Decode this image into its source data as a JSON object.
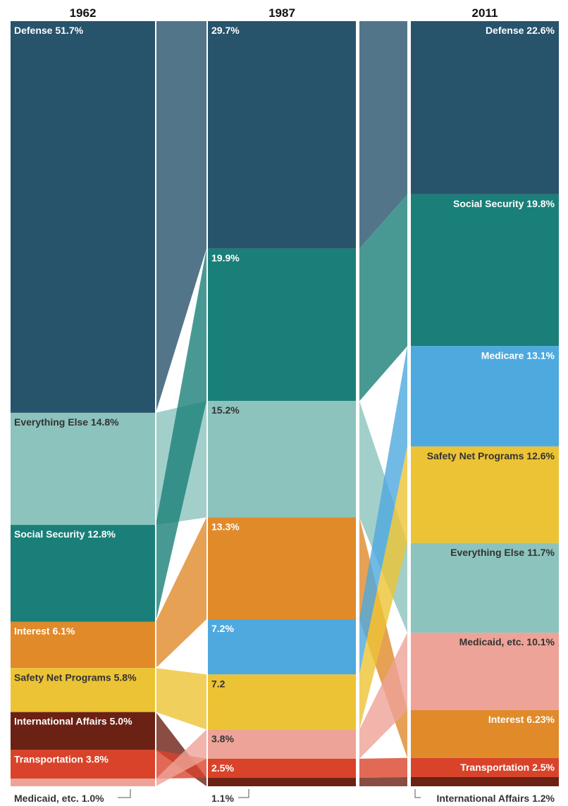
{
  "chart_data": {
    "type": "alluvial-stacked-bar",
    "years": [
      "1962",
      "1987",
      "2011"
    ],
    "unit": "percent",
    "colors": {
      "Defense": "#27536b",
      "Everything Else": "#8cc3bd",
      "Social Security": "#1a7f79",
      "Interest": "#e08a2a",
      "Safety Net Programs": "#ecc335",
      "International Affairs": "#6b2114",
      "Transportation": "#d9432a",
      "Medicaid, etc.": "#eda397",
      "Medicare": "#4ea9de"
    },
    "columns": [
      {
        "year": "1962",
        "segments": [
          {
            "category": "Defense",
            "value": 51.7,
            "label": "Defense 51.7%"
          },
          {
            "category": "Everything Else",
            "value": 14.8,
            "label": "Everything Else 14.8%"
          },
          {
            "category": "Social Security",
            "value": 12.8,
            "label": "Social Security 12.8%"
          },
          {
            "category": "Interest",
            "value": 6.1,
            "label": "Interest 6.1%"
          },
          {
            "category": "Safety Net Programs",
            "value": 5.8,
            "label": "Safety Net Programs 5.8%"
          },
          {
            "category": "International Affairs",
            "value": 5.0,
            "label": "International Affairs 5.0%"
          },
          {
            "category": "Transportation",
            "value": 3.8,
            "label": "Transportation 3.8%"
          },
          {
            "category": "Medicaid, etc.",
            "value": 1.0,
            "label": "Medicaid, etc. 1.0%"
          }
        ]
      },
      {
        "year": "1987",
        "segments": [
          {
            "category": "Defense",
            "value": 29.7,
            "label": "29.7%"
          },
          {
            "category": "Social Security",
            "value": 19.9,
            "label": "19.9%"
          },
          {
            "category": "Everything Else",
            "value": 15.2,
            "label": "15.2%"
          },
          {
            "category": "Interest",
            "value": 13.3,
            "label": "13.3%"
          },
          {
            "category": "Medicare",
            "value": 7.2,
            "label": "7.2%"
          },
          {
            "category": "Safety Net Programs",
            "value": 7.2,
            "label": "7.2"
          },
          {
            "category": "Medicaid, etc.",
            "value": 3.8,
            "label": "3.8%"
          },
          {
            "category": "Transportation",
            "value": 2.5,
            "label": "2.5%"
          },
          {
            "category": "International Affairs",
            "value": 1.1,
            "label": "1.1%"
          }
        ]
      },
      {
        "year": "2011",
        "segments": [
          {
            "category": "Defense",
            "value": 22.6,
            "label": "Defense 22.6%"
          },
          {
            "category": "Social Security",
            "value": 19.8,
            "label": "Social Security 19.8%"
          },
          {
            "category": "Medicare",
            "value": 13.1,
            "label": "Medicare 13.1%"
          },
          {
            "category": "Safety Net Programs",
            "value": 12.6,
            "label": "Safety Net Programs 12.6%"
          },
          {
            "category": "Everything Else",
            "value": 11.7,
            "label": "Everything Else 11.7%"
          },
          {
            "category": "Medicaid, etc.",
            "value": 10.1,
            "label": "Medicaid, etc. 10.1%"
          },
          {
            "category": "Interest",
            "value": 6.23,
            "label": "Interest 6.23%"
          },
          {
            "category": "Transportation",
            "value": 2.5,
            "label": "Transportation 2.5%"
          },
          {
            "category": "International Affairs",
            "value": 1.2,
            "label": "International Affairs 1.2%"
          }
        ]
      }
    ]
  }
}
